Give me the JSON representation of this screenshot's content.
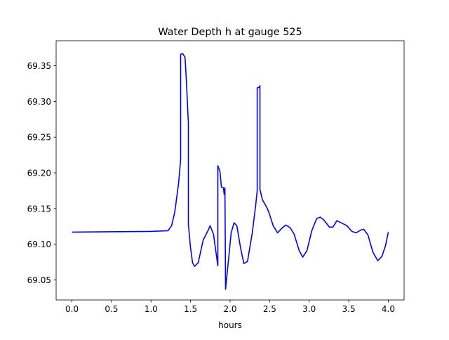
{
  "chart_data": {
    "type": "line",
    "title": "Water Depth h at gauge 525",
    "xlabel": "hours",
    "ylabel": "",
    "xlim": [
      -0.2,
      4.2
    ],
    "ylim": [
      69.022,
      69.385
    ],
    "xticks": [
      0.0,
      0.5,
      1.0,
      1.5,
      2.0,
      2.5,
      3.0,
      3.5,
      4.0
    ],
    "xtick_labels": [
      "0.0",
      "0.5",
      "1.0",
      "1.5",
      "2.0",
      "2.5",
      "3.0",
      "3.5",
      "4.0"
    ],
    "yticks": [
      69.05,
      69.1,
      69.15,
      69.2,
      69.25,
      69.3,
      69.35
    ],
    "ytick_labels": [
      "69.05",
      "69.10",
      "69.15",
      "69.20",
      "69.25",
      "69.30",
      "69.35"
    ],
    "grid": false,
    "series": [
      {
        "name": "h",
        "color": "#0000ff",
        "x": [
          0,
          0.993,
          1.215,
          1.26,
          1.3,
          1.348,
          1.375,
          1.375,
          1.4,
          1.43,
          1.446,
          1.472,
          1.472,
          1.499,
          1.525,
          1.55,
          1.596,
          1.66,
          1.72,
          1.747,
          1.79,
          1.845,
          1.845,
          1.871,
          1.89,
          1.916,
          1.925,
          1.934,
          1.942,
          1.978,
          2.013,
          2.05,
          2.085,
          2.13,
          2.174,
          2.22,
          2.28,
          2.324,
          2.342,
          2.342,
          2.37,
          2.377,
          2.377,
          2.41,
          2.457,
          2.49,
          2.545,
          2.6,
          2.66,
          2.705,
          2.76,
          2.81,
          2.874,
          2.918,
          2.971,
          3.033,
          3.095,
          3.14,
          3.184,
          3.255,
          3.3,
          3.35,
          3.405,
          3.477,
          3.539,
          3.592,
          3.654,
          3.69,
          3.743,
          3.805,
          3.867,
          3.92,
          3.965,
          4.0
        ],
        "y": [
          69.117,
          69.118,
          69.119,
          69.126,
          69.145,
          69.185,
          69.219,
          69.366,
          69.367,
          69.362,
          69.332,
          69.27,
          69.128,
          69.096,
          69.074,
          69.069,
          69.074,
          69.106,
          69.119,
          69.126,
          69.114,
          69.07,
          69.21,
          69.202,
          69.18,
          69.179,
          69.17,
          69.179,
          69.037,
          69.076,
          69.116,
          69.13,
          69.126,
          69.096,
          69.073,
          69.076,
          69.116,
          69.155,
          69.175,
          69.319,
          69.32,
          69.322,
          69.177,
          69.162,
          69.153,
          69.145,
          69.126,
          69.116,
          69.123,
          69.127,
          69.123,
          69.114,
          69.091,
          69.082,
          69.091,
          69.119,
          69.136,
          69.138,
          69.134,
          69.124,
          69.124,
          69.133,
          69.13,
          69.126,
          69.118,
          69.116,
          69.12,
          69.121,
          69.113,
          69.089,
          69.077,
          69.083,
          69.098,
          69.117
        ]
      }
    ]
  }
}
